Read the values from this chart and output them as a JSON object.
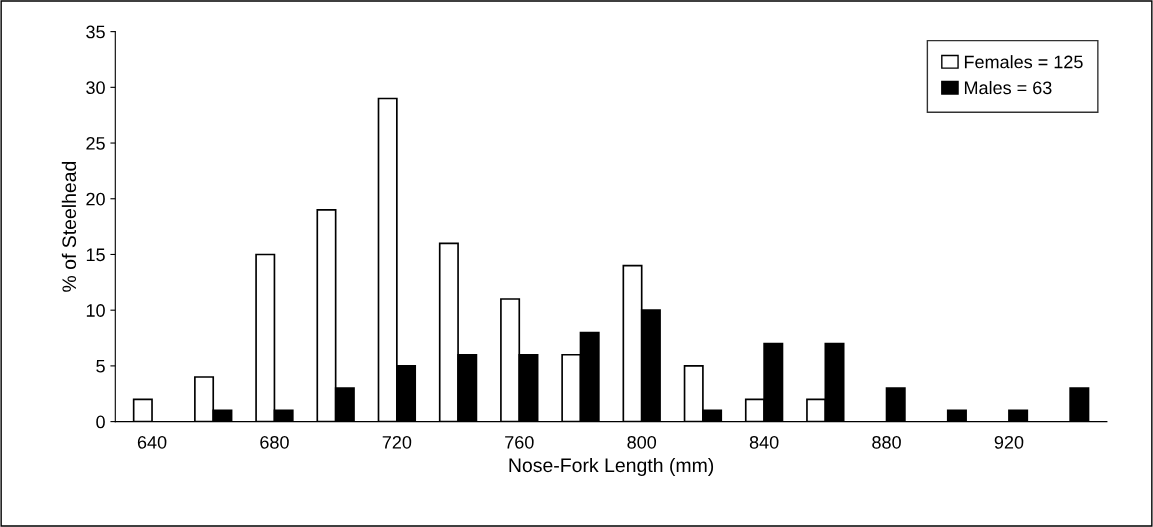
{
  "chart_data": {
    "type": "bar",
    "xlabel": "Nose-Fork Length (mm)",
    "ylabel": "% of Steelhead",
    "categories": [
      "640",
      null,
      "680",
      null,
      "720",
      null,
      "760",
      null,
      "800",
      null,
      "840",
      null,
      "880",
      null,
      "920",
      null
    ],
    "series": [
      {
        "name": "Females = 125",
        "color": "#ffffff",
        "values": [
          2,
          4,
          15,
          19,
          29,
          16,
          11,
          6,
          14,
          5,
          2,
          2,
          null,
          null,
          null,
          null
        ]
      },
      {
        "name": "Males = 63",
        "color": "#000000",
        "values": [
          null,
          1,
          1,
          3,
          5,
          6,
          6,
          8,
          10,
          1,
          7,
          7,
          3,
          1,
          1,
          3
        ]
      }
    ],
    "ylim": [
      0,
      35
    ],
    "yticks": [
      0,
      5,
      10,
      15,
      20,
      25,
      30,
      35
    ],
    "grid": false,
    "legend": "top right"
  }
}
